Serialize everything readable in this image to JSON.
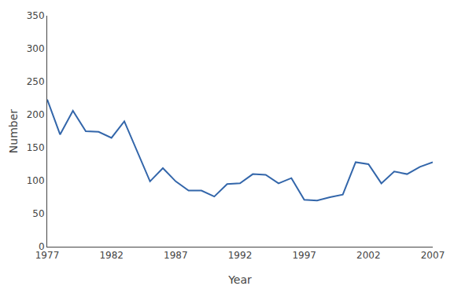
{
  "chart_data": {
    "type": "line",
    "x": [
      1977,
      1978,
      1979,
      1980,
      1981,
      1982,
      1983,
      1984,
      1985,
      1986,
      1987,
      1988,
      1989,
      1990,
      1991,
      1992,
      1993,
      1994,
      1995,
      1996,
      1997,
      1998,
      1999,
      2000,
      2001,
      2002,
      2003,
      2004,
      2005,
      2006,
      2007
    ],
    "values": [
      223,
      170,
      206,
      175,
      174,
      165,
      190,
      144,
      99,
      119,
      99,
      85,
      85,
      76,
      95,
      96,
      110,
      109,
      96,
      104,
      71,
      70,
      75,
      79,
      128,
      125,
      96,
      114,
      110,
      121,
      128
    ],
    "color": "#3366aa",
    "xlabel": "Year",
    "ylabel": "Number",
    "xlim": [
      1977,
      2007
    ],
    "ylim": [
      0,
      350
    ],
    "xticks": [
      1977,
      1982,
      1987,
      1992,
      1997,
      2002,
      2007
    ],
    "yticks": [
      0,
      50,
      100,
      150,
      200,
      250,
      300,
      350
    ],
    "grid": false
  }
}
